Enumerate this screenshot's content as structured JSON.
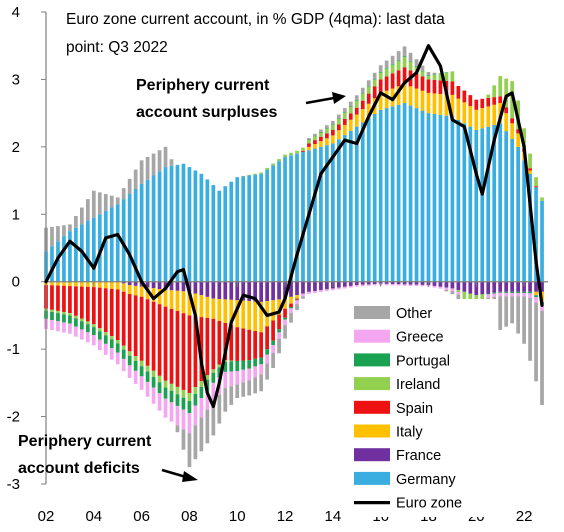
{
  "chart_data": {
    "type": "bar",
    "subtype": "stacked-bar-with-line",
    "title_line1": "Euro zone current account, in % GDP (4qma): last data",
    "title_line2": "point: Q3 2022",
    "annotations": {
      "surplus_line1": "Periphery current",
      "surplus_line2": "account surpluses",
      "deficit_line1": "Periphery current",
      "deficit_line2": "account deficits"
    },
    "x_ticks": [
      "02",
      "04",
      "06",
      "08",
      "10",
      "12",
      "14",
      "16",
      "18",
      "20",
      "22"
    ],
    "y_ticks": [
      "4",
      "3",
      "2",
      "1",
      "0",
      "-1",
      "-2",
      "-3"
    ],
    "ylim": [
      -3,
      4
    ],
    "xlim": [
      2002.0,
      2023.0
    ],
    "legend_position": "bottom-right, inside plot",
    "legend_order": [
      "Other",
      "Greece",
      "Portugal",
      "Ireland",
      "Spain",
      "Italy",
      "France",
      "Germany",
      "Euro zone"
    ],
    "colors": {
      "Other": "#a6a6a6",
      "Greece": "#f4a6f0",
      "Portugal": "#1aa152",
      "Ireland": "#92d050",
      "Spain": "#ee1111",
      "Italy": "#ffc000",
      "France": "#7030a0",
      "Germany": "#3aaee0",
      "Euro zone": "#000000"
    },
    "stack_order": [
      "Germany",
      "France",
      "Italy",
      "Spain",
      "Ireland",
      "Portugal",
      "Greece",
      "Other"
    ],
    "series_anchors": {
      "Germany": [
        [
          2002.0,
          0.45
        ],
        [
          2003.0,
          0.75
        ],
        [
          2004.0,
          0.95
        ],
        [
          2005.0,
          1.15
        ],
        [
          2006.0,
          1.45
        ],
        [
          2007.0,
          1.7
        ],
        [
          2007.75,
          1.75
        ],
        [
          2008.5,
          1.6
        ],
        [
          2009.25,
          1.35
        ],
        [
          2010.0,
          1.55
        ],
        [
          2011.0,
          1.6
        ],
        [
          2012.0,
          1.85
        ],
        [
          2013.0,
          1.95
        ],
        [
          2014.0,
          2.05
        ],
        [
          2015.0,
          2.3
        ],
        [
          2016.0,
          2.55
        ],
        [
          2017.0,
          2.65
        ],
        [
          2018.0,
          2.5
        ],
        [
          2019.0,
          2.45
        ],
        [
          2020.0,
          2.25
        ],
        [
          2021.0,
          2.35
        ],
        [
          2021.75,
          2.0
        ],
        [
          2022.25,
          1.6
        ],
        [
          2022.75,
          1.2
        ]
      ],
      "France": [
        [
          2002.0,
          0.0
        ],
        [
          2005.0,
          0.0
        ],
        [
          2005.5,
          -0.05
        ],
        [
          2007.0,
          -0.12
        ],
        [
          2008.0,
          -0.15
        ],
        [
          2009.0,
          -0.25
        ],
        [
          2011.0,
          -0.3
        ],
        [
          2012.0,
          -0.25
        ],
        [
          2013.0,
          -0.15
        ],
        [
          2014.0,
          -0.1
        ],
        [
          2015.0,
          -0.05
        ],
        [
          2016.0,
          -0.03
        ],
        [
          2018.0,
          -0.05
        ],
        [
          2019.0,
          -0.1
        ],
        [
          2020.0,
          -0.2
        ],
        [
          2021.0,
          -0.15
        ],
        [
          2022.0,
          -0.15
        ],
        [
          2022.75,
          -0.15
        ]
      ],
      "Italy": [
        [
          2002.0,
          -0.05
        ],
        [
          2004.0,
          -0.08
        ],
        [
          2006.0,
          -0.15
        ],
        [
          2007.0,
          -0.25
        ],
        [
          2008.0,
          -0.35
        ],
        [
          2009.0,
          -0.3
        ],
        [
          2010.0,
          -0.4
        ],
        [
          2011.0,
          -0.45
        ],
        [
          2012.0,
          -0.15
        ],
        [
          2013.0,
          0.05
        ],
        [
          2014.0,
          0.12
        ],
        [
          2015.0,
          0.18
        ],
        [
          2016.0,
          0.25
        ],
        [
          2017.0,
          0.28
        ],
        [
          2018.0,
          0.3
        ],
        [
          2019.0,
          0.32
        ],
        [
          2020.0,
          0.3
        ],
        [
          2021.0,
          0.3
        ],
        [
          2021.75,
          0.2
        ],
        [
          2022.25,
          0.05
        ],
        [
          2022.75,
          -0.15
        ]
      ],
      "Spain": [
        [
          2002.0,
          -0.35
        ],
        [
          2003.0,
          -0.4
        ],
        [
          2004.0,
          -0.55
        ],
        [
          2005.0,
          -0.75
        ],
        [
          2006.0,
          -0.95
        ],
        [
          2007.0,
          -1.1
        ],
        [
          2008.0,
          -1.15
        ],
        [
          2008.75,
          -0.85
        ],
        [
          2009.5,
          -0.55
        ],
        [
          2010.5,
          -0.45
        ],
        [
          2011.5,
          -0.3
        ],
        [
          2012.25,
          -0.05
        ],
        [
          2013.0,
          0.05
        ],
        [
          2014.0,
          0.08
        ],
        [
          2015.0,
          0.1
        ],
        [
          2016.0,
          0.2
        ],
        [
          2017.0,
          0.25
        ],
        [
          2018.0,
          0.2
        ],
        [
          2019.0,
          0.2
        ],
        [
          2020.0,
          0.15
        ],
        [
          2021.0,
          0.1
        ],
        [
          2022.0,
          0.05
        ],
        [
          2022.75,
          0.0
        ]
      ],
      "Ireland": [
        [
          2002.0,
          -0.03
        ],
        [
          2005.0,
          -0.05
        ],
        [
          2006.0,
          -0.08
        ],
        [
          2007.0,
          -0.1
        ],
        [
          2008.0,
          -0.12
        ],
        [
          2009.0,
          -0.05
        ],
        [
          2010.0,
          0.0
        ],
        [
          2011.0,
          0.02
        ],
        [
          2013.0,
          0.05
        ],
        [
          2015.0,
          0.1
        ],
        [
          2016.0,
          0.1
        ],
        [
          2017.0,
          0.15
        ],
        [
          2018.0,
          0.05
        ],
        [
          2019.0,
          0.15
        ],
        [
          2019.5,
          -0.2
        ],
        [
          2020.0,
          -0.4
        ],
        [
          2020.5,
          0.05
        ],
        [
          2021.0,
          0.3
        ],
        [
          2021.5,
          0.55
        ],
        [
          2022.0,
          0.3
        ],
        [
          2022.75,
          0.05
        ]
      ],
      "Portugal": [
        [
          2002.0,
          -0.12
        ],
        [
          2004.0,
          -0.12
        ],
        [
          2006.0,
          -0.15
        ],
        [
          2008.0,
          -0.18
        ],
        [
          2009.0,
          -0.15
        ],
        [
          2010.0,
          -0.15
        ],
        [
          2011.0,
          -0.1
        ],
        [
          2012.0,
          -0.03
        ],
        [
          2013.0,
          0.01
        ],
        [
          2016.0,
          0.01
        ],
        [
          2018.0,
          0.01
        ],
        [
          2020.0,
          -0.01
        ],
        [
          2022.0,
          -0.02
        ],
        [
          2022.75,
          -0.03
        ]
      ],
      "Greece": [
        [
          2002.0,
          -0.15
        ],
        [
          2004.0,
          -0.15
        ],
        [
          2006.0,
          -0.2
        ],
        [
          2007.0,
          -0.28
        ],
        [
          2008.0,
          -0.3
        ],
        [
          2009.0,
          -0.28
        ],
        [
          2010.0,
          -0.2
        ],
        [
          2011.0,
          -0.15
        ],
        [
          2012.0,
          -0.08
        ],
        [
          2013.0,
          -0.03
        ],
        [
          2016.0,
          -0.02
        ],
        [
          2018.0,
          -0.02
        ],
        [
          2020.0,
          -0.05
        ],
        [
          2021.0,
          -0.05
        ],
        [
          2022.0,
          -0.05
        ],
        [
          2022.75,
          -0.1
        ]
      ],
      "Other": [
        [
          2002.0,
          0.35
        ],
        [
          2003.0,
          0.1
        ],
        [
          2004.0,
          0.4
        ],
        [
          2005.0,
          0.1
        ],
        [
          2006.0,
          0.35
        ],
        [
          2007.0,
          0.3
        ],
        [
          2008.0,
          -0.5
        ],
        [
          2009.0,
          -0.5
        ],
        [
          2010.0,
          -0.2
        ],
        [
          2011.0,
          -0.25
        ],
        [
          2012.0,
          -0.2
        ],
        [
          2013.0,
          0.02
        ],
        [
          2014.0,
          0.05
        ],
        [
          2016.0,
          0.1
        ],
        [
          2017.0,
          0.15
        ],
        [
          2018.0,
          0.05
        ],
        [
          2019.0,
          -0.05
        ],
        [
          2020.0,
          -0.3
        ],
        [
          2021.0,
          -0.5
        ],
        [
          2021.5,
          -0.4
        ],
        [
          2022.0,
          -0.7
        ],
        [
          2022.75,
          -1.4
        ]
      ]
    },
    "euro_zone_line": [
      [
        2002.0,
        0.0
      ],
      [
        2002.5,
        0.35
      ],
      [
        2003.0,
        0.6
      ],
      [
        2003.5,
        0.45
      ],
      [
        2004.0,
        0.2
      ],
      [
        2004.5,
        0.65
      ],
      [
        2005.0,
        0.7
      ],
      [
        2005.5,
        0.4
      ],
      [
        2006.0,
        0.0
      ],
      [
        2006.5,
        -0.25
      ],
      [
        2007.0,
        -0.1
      ],
      [
        2007.5,
        0.15
      ],
      [
        2007.75,
        0.18
      ],
      [
        2008.25,
        -0.5
      ],
      [
        2008.5,
        -1.2
      ],
      [
        2008.75,
        -1.65
      ],
      [
        2009.0,
        -1.85
      ],
      [
        2009.25,
        -1.5
      ],
      [
        2009.75,
        -0.6
      ],
      [
        2010.25,
        -0.2
      ],
      [
        2010.75,
        -0.25
      ],
      [
        2011.25,
        -0.5
      ],
      [
        2011.75,
        -0.45
      ],
      [
        2012.0,
        -0.25
      ],
      [
        2012.5,
        0.4
      ],
      [
        2013.0,
        1.0
      ],
      [
        2013.5,
        1.6
      ],
      [
        2014.0,
        1.85
      ],
      [
        2014.5,
        2.1
      ],
      [
        2015.0,
        2.05
      ],
      [
        2015.5,
        2.45
      ],
      [
        2016.0,
        2.8
      ],
      [
        2016.5,
        2.7
      ],
      [
        2017.0,
        2.95
      ],
      [
        2017.5,
        3.1
      ],
      [
        2018.0,
        3.5
      ],
      [
        2018.5,
        3.2
      ],
      [
        2019.0,
        2.4
      ],
      [
        2019.5,
        2.3
      ],
      [
        2020.0,
        1.6
      ],
      [
        2020.25,
        1.3
      ],
      [
        2020.75,
        2.1
      ],
      [
        2021.25,
        2.75
      ],
      [
        2021.5,
        2.8
      ],
      [
        2022.0,
        2.0
      ],
      [
        2022.5,
        0.3
      ],
      [
        2022.75,
        -0.35
      ]
    ]
  }
}
